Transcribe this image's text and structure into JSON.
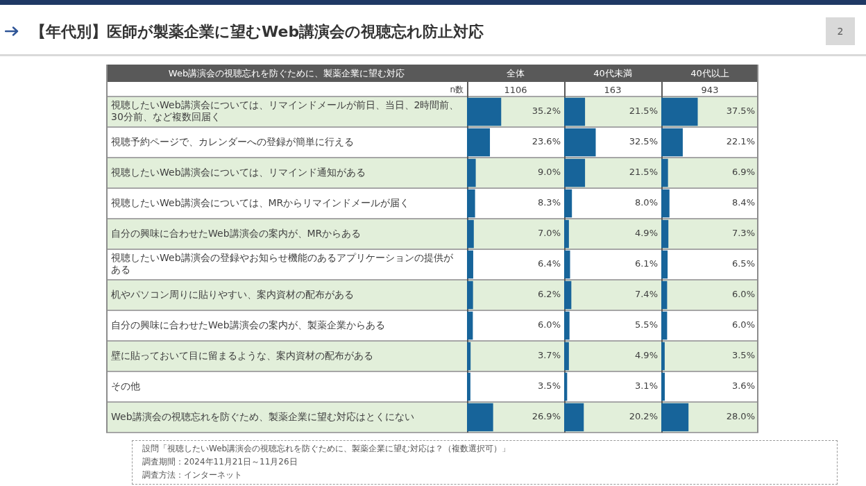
{
  "chart_data": [
    {
      "type": "other",
      "title": "【年代別】医師が製薬企業に望むWeb講演会の視聴忘れ防止対応",
      "annotations": [
        "設問「視聴したいWeb講演会の視聴忘れを防ぐために、製薬企業に望む対応は？（複数選択可）」",
        "調査期間：2024年11月21日～11月26日",
        "調査方法：インターネット",
        "2"
      ]
    },
    {
      "type": "bar",
      "orientation": "horizontal",
      "title": "全体",
      "subtitle": "1106",
      "ylabel": "Web講演会の視聴忘れを防ぐために、製薬企業に望む対応",
      "annotations": [
        "n数"
      ],
      "categories": [
        "視聴したいWeb講演会については、リマインドメールが前日、当日、2時間前、30分前、など複数回届く",
        "視聴予約ページで、カレンダーへの登録が簡単に行える",
        "視聴したいWeb講演会については、リマインド通知がある",
        "視聴したいWeb講演会については、MRからリマインドメールが届く",
        "自分の興味に合わせたWeb講演会の案内が、MRからある",
        "視聴したいWeb講演会の登録やお知らせ機能のあるアプリケーションの提供がある",
        "机やパソコン周りに貼りやすい、案内資材の配布がある",
        "自分の興味に合わせたWeb講演会の案内が、製薬企業からある",
        "壁に貼っておいて目に留まるような、案内資材の配布がある",
        "その他",
        "Web講演会の視聴忘れを防ぐため、製薬企業に望む対応はとくにない"
      ],
      "values": [
        35.2,
        23.6,
        9.0,
        8.3,
        7.0,
        6.4,
        6.2,
        6.0,
        3.7,
        3.5,
        26.9
      ],
      "value_labels": [
        "35.2%",
        "23.6%",
        "9.0%",
        "8.3%",
        "7.0%",
        "6.4%",
        "6.2%",
        "6.0%",
        "3.7%",
        "3.5%",
        "26.9%"
      ],
      "color": "#17649a",
      "xlim": [
        0,
        100
      ],
      "tick_labels": "y"
    },
    {
      "type": "bar",
      "orientation": "horizontal",
      "title": "40代未満",
      "subtitle": "163",
      "categories": [
        null,
        null,
        null,
        null,
        null,
        null,
        null,
        null,
        null,
        null,
        null
      ],
      "values": [
        21.5,
        32.5,
        21.5,
        8.0,
        4.9,
        6.1,
        7.4,
        5.5,
        4.9,
        3.1,
        20.2
      ],
      "value_labels": [
        "21.5%",
        "32.5%",
        "21.5%",
        "8.0%",
        "4.9%",
        "6.1%",
        "7.4%",
        "5.5%",
        "4.9%",
        "3.1%",
        "20.2%"
      ],
      "color": "#17649a",
      "xlim": [
        0,
        100
      ],
      "tick_labels": false
    },
    {
      "type": "bar",
      "orientation": "horizontal",
      "title": "40代以上",
      "subtitle": "943",
      "categories": [
        null,
        null,
        null,
        null,
        null,
        null,
        null,
        null,
        null,
        null,
        null
      ],
      "values": [
        37.5,
        22.1,
        6.9,
        8.4,
        7.3,
        6.5,
        6.0,
        6.0,
        3.5,
        3.6,
        28.0
      ],
      "value_labels": [
        "37.5%",
        "22.1%",
        "6.9%",
        "8.4%",
        "7.3%",
        "6.5%",
        "6.0%",
        "6.0%",
        "3.5%",
        "3.6%",
        "28.0%"
      ],
      "color": "#17649a",
      "xlim": [
        0,
        100
      ],
      "tick_labels": false
    }
  ]
}
